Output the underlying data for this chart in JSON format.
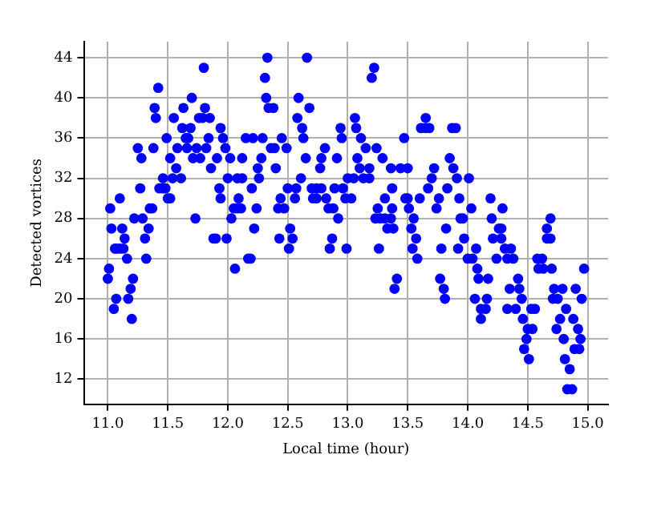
{
  "chart_data": {
    "type": "scatter",
    "xlabel": "Local time (hour)",
    "ylabel": "Detected vortices",
    "xlim": [
      10.8,
      15.17
    ],
    "ylim": [
      9.5,
      45.6
    ],
    "xticks": [
      {
        "value": 11,
        "label": "11.0"
      },
      {
        "value": 11.5,
        "label": "11.5"
      },
      {
        "value": 12,
        "label": "12.0"
      },
      {
        "value": 12.5,
        "label": "12.5"
      },
      {
        "value": 13,
        "label": "13.0"
      },
      {
        "value": 13.5,
        "label": "13.5"
      },
      {
        "value": 14,
        "label": "14.0"
      },
      {
        "value": 14.5,
        "label": "14.5"
      },
      {
        "value": 15,
        "label": "15.0"
      }
    ],
    "yticks": [
      12,
      16,
      20,
      24,
      28,
      32,
      36,
      40,
      44
    ],
    "grid": true,
    "marker": "circle",
    "series": [
      {
        "color": "#0000ff",
        "x": [
          11.8,
          11.42,
          11.39,
          11.4,
          11.7,
          11.55,
          11.63,
          11.81,
          11.76,
          11.79,
          11.85,
          11.62,
          11.69,
          11.94,
          11.49,
          11.65,
          11.67,
          11.84,
          11.96,
          11.25,
          11.38,
          11.58,
          11.66,
          11.74,
          11.82,
          11.98,
          11.28,
          11.52,
          11.71,
          11.77,
          11.91,
          12.02,
          11.57,
          11.86,
          11.46,
          11.54,
          11.61,
          12.0,
          12.08,
          11.43,
          11.46,
          11.48,
          11.93,
          11.27,
          11.5,
          11.52,
          11.94,
          12.09,
          11.1,
          11.02,
          11.35,
          11.37,
          12.05,
          12.08,
          11.22,
          11.29,
          11.73,
          12.03,
          11.03,
          11.12,
          11.34,
          11.06,
          11.07,
          11.1,
          11.13,
          11.14,
          11.31,
          11.88,
          11.9,
          11.99,
          11.16,
          11.32,
          12.06,
          11.01,
          11.0,
          11.21,
          11.19,
          11.07,
          11.17,
          11.05,
          11.2,
          12.33,
          12.66,
          12.31,
          13.22,
          13.2,
          12.32,
          12.59,
          12.34,
          12.38,
          12.68,
          12.58,
          13.06,
          12.62,
          12.94,
          13.07,
          12.15,
          12.21,
          12.29,
          12.45,
          12.63,
          12.95,
          13.11,
          12.36,
          12.39,
          12.49,
          12.81,
          13.15,
          13.24,
          12.12,
          12.28,
          12.65,
          12.78,
          12.91,
          13.08,
          13.29,
          12.25,
          12.4,
          12.77,
          13.1,
          13.18,
          13.36,
          12.12,
          12.26,
          12.61,
          13.0,
          13.05,
          13.13,
          13.18,
          12.2,
          12.5,
          12.57,
          12.7,
          12.74,
          12.78,
          12.89,
          12.96,
          13.37,
          12.44,
          12.56,
          12.71,
          12.74,
          12.82,
          12.98,
          13.03,
          13.31,
          12.11,
          12.24,
          12.42,
          12.47,
          12.84,
          12.88,
          13.25,
          13.37,
          12.92,
          13.23,
          13.27,
          13.31,
          13.36,
          12.22,
          12.52,
          13.33,
          13.38,
          12.43,
          12.54,
          12.87,
          12.51,
          12.85,
          12.99,
          13.26,
          12.17,
          12.19,
          13.41,
          13.39,
          13.65,
          13.61,
          13.65,
          13.68,
          13.87,
          13.9,
          13.47,
          13.85,
          13.44,
          13.5,
          13.72,
          13.88,
          13.7,
          13.91,
          14.01,
          13.67,
          13.83,
          13.48,
          13.5,
          13.6,
          13.76,
          13.93,
          14.19,
          13.51,
          13.74,
          14.03,
          14.29,
          13.55,
          13.94,
          13.96,
          14.2,
          14.69,
          13.53,
          13.82,
          14.26,
          14.28,
          14.66,
          13.57,
          13.97,
          14.21,
          14.28,
          14.66,
          14.69,
          13.54,
          13.78,
          13.92,
          14.07,
          14.31,
          14.36,
          13.58,
          14.0,
          14.04,
          14.24,
          14.33,
          14.38,
          14.58,
          14.62,
          14.08,
          14.59,
          14.63,
          14.7,
          14.97,
          13.77,
          14.09,
          14.17,
          14.42,
          13.8,
          14.35,
          14.43,
          14.72,
          14.79,
          14.9,
          13.81,
          14.06,
          14.16,
          14.45,
          14.71,
          14.75,
          14.95,
          14.11,
          14.15,
          14.33,
          14.4,
          14.53,
          14.56,
          14.82,
          14.11,
          14.46,
          14.77,
          14.88,
          14.5,
          14.54,
          14.74,
          14.92,
          14.49,
          14.8,
          14.94,
          14.47,
          14.89,
          14.93,
          14.51,
          14.81,
          14.85,
          14.83,
          14.87
        ],
        "values": [
          43,
          41,
          39,
          38,
          40,
          38,
          39,
          39,
          38,
          38,
          38,
          37,
          37,
          37,
          36,
          36,
          36,
          36,
          36,
          35,
          35,
          35,
          35,
          35,
          35,
          35,
          34,
          34,
          34,
          34,
          34,
          34,
          33,
          33,
          32,
          32,
          32,
          32,
          32,
          31,
          31,
          31,
          31,
          31,
          30,
          30,
          30,
          30,
          30,
          29,
          29,
          29,
          29,
          29,
          28,
          28,
          28,
          28,
          27,
          27,
          27,
          25,
          25,
          25,
          25,
          26,
          26,
          26,
          26,
          26,
          24,
          24,
          23,
          23,
          22,
          22,
          21,
          20,
          20,
          19,
          18,
          44,
          44,
          42,
          43,
          42,
          40,
          40,
          39,
          39,
          39,
          38,
          38,
          37,
          37,
          37,
          36,
          36,
          36,
          36,
          36,
          36,
          36,
          35,
          35,
          35,
          35,
          35,
          35,
          34,
          34,
          34,
          34,
          34,
          34,
          34,
          33,
          33,
          33,
          33,
          33,
          33,
          32,
          32,
          32,
          32,
          32,
          32,
          32,
          31,
          31,
          31,
          31,
          31,
          31,
          31,
          31,
          31,
          30,
          30,
          30,
          30,
          30,
          30,
          30,
          30,
          29,
          29,
          29,
          29,
          29,
          29,
          29,
          29,
          28,
          28,
          28,
          28,
          28,
          27,
          27,
          27,
          27,
          26,
          26,
          26,
          25,
          25,
          25,
          25,
          24,
          24,
          22,
          21,
          38,
          37,
          37,
          37,
          37,
          37,
          36,
          34,
          33,
          33,
          33,
          33,
          32,
          32,
          32,
          31,
          31,
          30,
          30,
          30,
          30,
          30,
          30,
          29,
          29,
          29,
          29,
          28,
          28,
          28,
          28,
          28,
          27,
          27,
          27,
          27,
          27,
          26,
          26,
          26,
          26,
          26,
          26,
          25,
          25,
          25,
          25,
          25,
          25,
          24,
          24,
          24,
          24,
          24,
          24,
          24,
          24,
          23,
          23,
          23,
          23,
          23,
          22,
          22,
          22,
          22,
          21,
          21,
          21,
          21,
          21,
          21,
          20,
          20,
          20,
          20,
          20,
          20,
          20,
          19,
          19,
          19,
          19,
          19,
          19,
          19,
          18,
          18,
          18,
          18,
          17,
          17,
          17,
          17,
          16,
          16,
          16,
          15,
          15,
          15,
          14,
          14,
          13,
          11,
          11
        ]
      }
    ]
  }
}
